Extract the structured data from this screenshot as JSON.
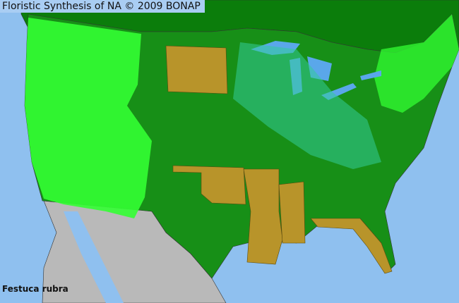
{
  "title": "Floristic Synthesis of NA © 2009 BONAP",
  "species": "Festuca rubra",
  "colors": {
    "ocean": "#8fc0ef",
    "canada": "#0b7d0b",
    "us_present": "#178f17",
    "native_county": "#33ff33",
    "adventive_county": "#33cc99",
    "not_present_state": "#b8942a",
    "mexico": "#b9b9b9",
    "lakes": "#5aa7ea"
  }
}
